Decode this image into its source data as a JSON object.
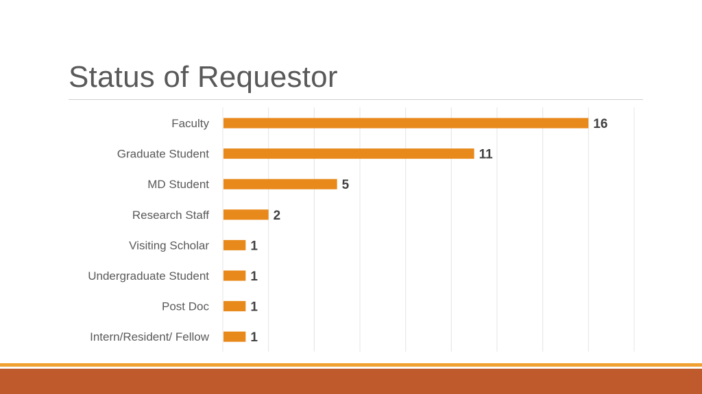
{
  "slide": {
    "title": "Status of Requestor"
  },
  "theme": {
    "bar_color": "#E8891B",
    "footer_thin_color": "#F0A030",
    "footer_band_color": "#BE5A2C",
    "gridline_color": "#E4E4E4"
  },
  "chart_data": {
    "type": "bar",
    "orientation": "horizontal",
    "title": "",
    "xlabel": "",
    "ylabel": "",
    "categories": [
      "Faculty",
      "Graduate Student",
      "MD Student",
      "Research Staff",
      "Visiting Scholar",
      "Undergraduate Student",
      "Post Doc",
      "Intern/Resident/ Fellow"
    ],
    "values": [
      16,
      11,
      5,
      2,
      1,
      1,
      1,
      1
    ],
    "xlim": [
      0,
      18
    ],
    "grid": true,
    "data_labels": true,
    "legend": "none"
  }
}
